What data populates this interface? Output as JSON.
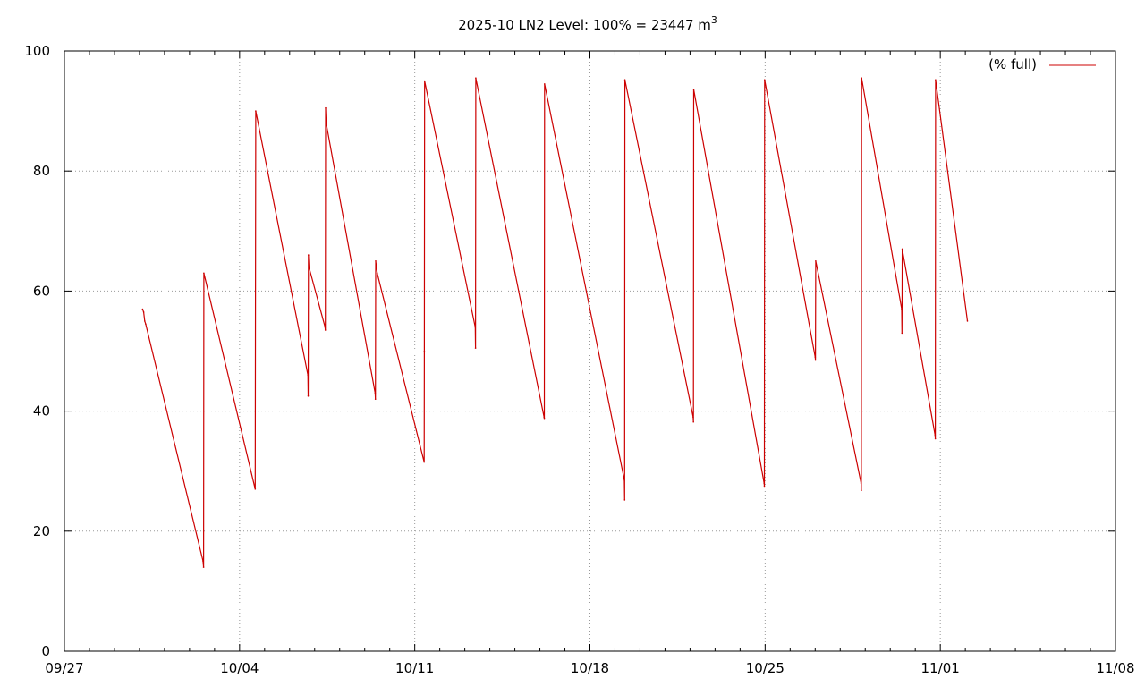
{
  "chart_data": {
    "type": "line",
    "title_main": "2025-10 LN2 Level: 100% = 23447 m",
    "title_sup": "3",
    "xlabel": "",
    "ylabel": "",
    "x_ticks": [
      "09/27",
      "10/04",
      "10/11",
      "10/18",
      "10/25",
      "11/01",
      "11/08"
    ],
    "y_ticks": [
      0,
      20,
      40,
      60,
      80,
      100
    ],
    "xlim": [
      "09/27",
      "11/08"
    ],
    "ylim": [
      0,
      100
    ],
    "grid": true,
    "legend_position": "top-right",
    "colors": {
      "series": "#cc0000",
      "grid": "#999999",
      "axis": "#000000"
    },
    "series": [
      {
        "name": "(% full)",
        "x": [
          "09/30 03:00",
          "09/30 04:00",
          "09/30 05:00",
          "09/30 06:00",
          "10/02 13:00",
          "10/02 13:30",
          "10/02 13:45",
          "10/04 15:00",
          "10/04 15:30",
          "10/06 17:30",
          "10/06 17:45",
          "10/06 18:00",
          "10/06 18:30",
          "10/07 10:00",
          "10/07 10:15",
          "10/07 10:30",
          "10/07 11:00",
          "10/09 10:00",
          "10/09 10:15",
          "10/09 10:30",
          "10/09 12:00",
          "10/11 09:00",
          "10/11 09:15",
          "10/11 09:30",
          "10/13 10:00",
          "10/13 10:15",
          "10/13 10:30",
          "10/16 04:00",
          "10/16 04:15",
          "10/16 04:30",
          "10/19 09:00",
          "10/19 09:15",
          "10/19 09:30",
          "10/22 03:00",
          "10/22 03:15",
          "10/22 03:30",
          "10/24 23:00",
          "10/24 23:15",
          "10/24 23:30",
          "10/27 00:00",
          "10/27 00:15",
          "10/27 00:30",
          "10/28 20:00",
          "10/28 20:15",
          "10/28 20:30",
          "10/30 11:00",
          "10/30 11:15",
          "10/30 11:30",
          "10/31 19:00",
          "10/31 19:15",
          "10/31 19:30",
          "11/02 02:00"
        ],
        "values": [
          57,
          56.5,
          55,
          54.5,
          15,
          14,
          63,
          27,
          90,
          46,
          42.5,
          66,
          64,
          54,
          53.5,
          90.5,
          88,
          43,
          42,
          65,
          63,
          31.5,
          50,
          95,
          54,
          50.5,
          95.5,
          39,
          38.8,
          94.5,
          28.5,
          25.2,
          95.2,
          39,
          38.2,
          93.6,
          28,
          27.5,
          95.2,
          49,
          48.5,
          65,
          28,
          26.8,
          95.5,
          57,
          53,
          67,
          36,
          35.4,
          95.2,
          55
        ]
      }
    ]
  }
}
